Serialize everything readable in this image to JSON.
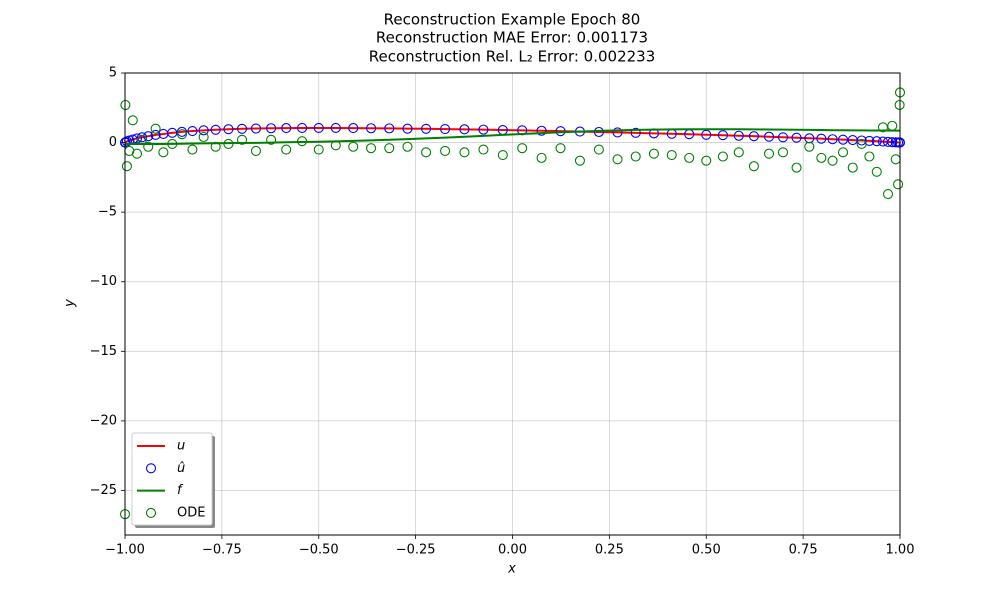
{
  "chart_data": {
    "type": "line",
    "title": [
      "Reconstruction Example Epoch 80",
      "Reconstruction MAE Error: 0.001173",
      "Reconstruction Rel. L₂ Error: 0.002233"
    ],
    "xlabel": "x",
    "ylabel": "y",
    "xlim": [
      -1,
      1
    ],
    "ylim": [
      -28.2,
      5
    ],
    "xticks": [
      {
        "value": -1,
        "label": "−1.00"
      },
      {
        "value": -0.75,
        "label": "−0.75"
      },
      {
        "value": -0.5,
        "label": "−0.50"
      },
      {
        "value": -0.25,
        "label": "−0.25"
      },
      {
        "value": 0,
        "label": "0.00"
      },
      {
        "value": 0.25,
        "label": "0.25"
      },
      {
        "value": 0.5,
        "label": "0.50"
      },
      {
        "value": 0.75,
        "label": "0.75"
      },
      {
        "value": 1,
        "label": "1.00"
      }
    ],
    "yticks": [
      {
        "value": -25,
        "label": "−25"
      },
      {
        "value": -20,
        "label": "−20"
      },
      {
        "value": -15,
        "label": "−15"
      },
      {
        "value": -10,
        "label": "−10"
      },
      {
        "value": -5,
        "label": "−5"
      },
      0,
      5
    ],
    "grid": true,
    "legend": "lower left",
    "x": [
      -1,
      -0.999,
      -0.995,
      -0.989,
      -0.98,
      -0.969,
      -0.956,
      -0.94,
      -0.921,
      -0.901,
      -0.878,
      -0.853,
      -0.826,
      -0.797,
      -0.766,
      -0.733,
      -0.698,
      -0.662,
      -0.623,
      -0.584,
      -0.543,
      -0.5,
      -0.456,
      -0.411,
      -0.365,
      -0.318,
      -0.271,
      -0.223,
      -0.174,
      -0.124,
      -0.075,
      -0.025,
      0.025,
      0.075,
      0.124,
      0.174,
      0.223,
      0.271,
      0.318,
      0.365,
      0.411,
      0.456,
      0.5,
      0.543,
      0.584,
      0.623,
      0.662,
      0.698,
      0.733,
      0.766,
      0.797,
      0.826,
      0.853,
      0.878,
      0.901,
      0.921,
      0.94,
      0.956,
      0.969,
      0.98,
      0.989,
      0.995,
      0.999,
      1
    ],
    "series": [
      {
        "name": "u",
        "color": "#ff0000",
        "style": "line",
        "values": [
          0,
          0.02,
          0.08,
          0.15,
          0.22,
          0.3,
          0.38,
          0.46,
          0.55,
          0.62,
          0.7,
          0.77,
          0.83,
          0.88,
          0.92,
          0.96,
          0.99,
          1.01,
          1.03,
          1.04,
          1.05,
          1.05,
          1.05,
          1.04,
          1.03,
          1.02,
          1.0,
          0.99,
          0.97,
          0.95,
          0.93,
          0.9,
          0.88,
          0.85,
          0.82,
          0.79,
          0.76,
          0.73,
          0.7,
          0.66,
          0.63,
          0.6,
          0.56,
          0.53,
          0.49,
          0.46,
          0.42,
          0.38,
          0.35,
          0.31,
          0.28,
          0.24,
          0.21,
          0.18,
          0.15,
          0.12,
          0.1,
          0.07,
          0.05,
          0.03,
          0.02,
          0.01,
          0,
          0
        ]
      },
      {
        "name": "û",
        "color": "#0000ff",
        "style": "marker",
        "values": [
          0,
          0.02,
          0.08,
          0.15,
          0.22,
          0.3,
          0.38,
          0.46,
          0.55,
          0.62,
          0.7,
          0.77,
          0.83,
          0.88,
          0.92,
          0.96,
          0.99,
          1.01,
          1.03,
          1.04,
          1.05,
          1.05,
          1.05,
          1.04,
          1.03,
          1.02,
          1.0,
          0.99,
          0.97,
          0.95,
          0.93,
          0.9,
          0.88,
          0.85,
          0.82,
          0.79,
          0.76,
          0.73,
          0.7,
          0.66,
          0.63,
          0.6,
          0.56,
          0.53,
          0.49,
          0.46,
          0.42,
          0.38,
          0.35,
          0.31,
          0.28,
          0.24,
          0.21,
          0.18,
          0.15,
          0.12,
          0.1,
          0.07,
          0.05,
          0.03,
          0.02,
          0.01,
          0,
          0
        ]
      },
      {
        "name": "f",
        "color": "#008000",
        "style": "line",
        "values": [
          -0.1,
          -0.1,
          -0.1,
          -0.1,
          -0.1,
          -0.1,
          -0.1,
          -0.1,
          -0.1,
          -0.1,
          -0.09,
          -0.08,
          -0.07,
          -0.06,
          -0.05,
          -0.04,
          -0.03,
          -0.02,
          0,
          0.02,
          0.04,
          0.06,
          0.09,
          0.12,
          0.16,
          0.2,
          0.25,
          0.3,
          0.36,
          0.42,
          0.48,
          0.55,
          0.62,
          0.68,
          0.74,
          0.79,
          0.84,
          0.88,
          0.91,
          0.93,
          0.95,
          0.96,
          0.96,
          0.96,
          0.96,
          0.95,
          0.94,
          0.93,
          0.92,
          0.91,
          0.9,
          0.89,
          0.89,
          0.88,
          0.88,
          0.87,
          0.87,
          0.87,
          0.87,
          0.86,
          0.86,
          0.86,
          0.86,
          0.86
        ]
      },
      {
        "name": "ODE",
        "color": "#008000",
        "style": "marker",
        "values": [
          -26.7,
          2.7,
          -1.7,
          -0.6,
          1.6,
          -0.8,
          0.2,
          -0.3,
          1.0,
          -0.7,
          -0.1,
          0.6,
          -0.5,
          0.4,
          -0.3,
          -0.1,
          0.2,
          -0.6,
          0.2,
          -0.5,
          0.1,
          -0.5,
          -0.2,
          -0.3,
          -0.4,
          -0.4,
          -0.3,
          -0.7,
          -0.6,
          -0.7,
          -0.5,
          -0.9,
          -0.4,
          -1.1,
          -0.4,
          -1.3,
          -0.5,
          -1.2,
          -1.0,
          -0.8,
          -0.9,
          -1.1,
          -1.3,
          -1.0,
          -0.7,
          -1.7,
          -0.8,
          -0.7,
          -1.8,
          -0.3,
          -1.1,
          -1.3,
          -0.7,
          -1.8,
          -0.1,
          -1.0,
          -2.1,
          1.1,
          -3.7,
          1.2,
          -1.2,
          -3.0,
          2.7,
          3.6
        ]
      }
    ]
  }
}
